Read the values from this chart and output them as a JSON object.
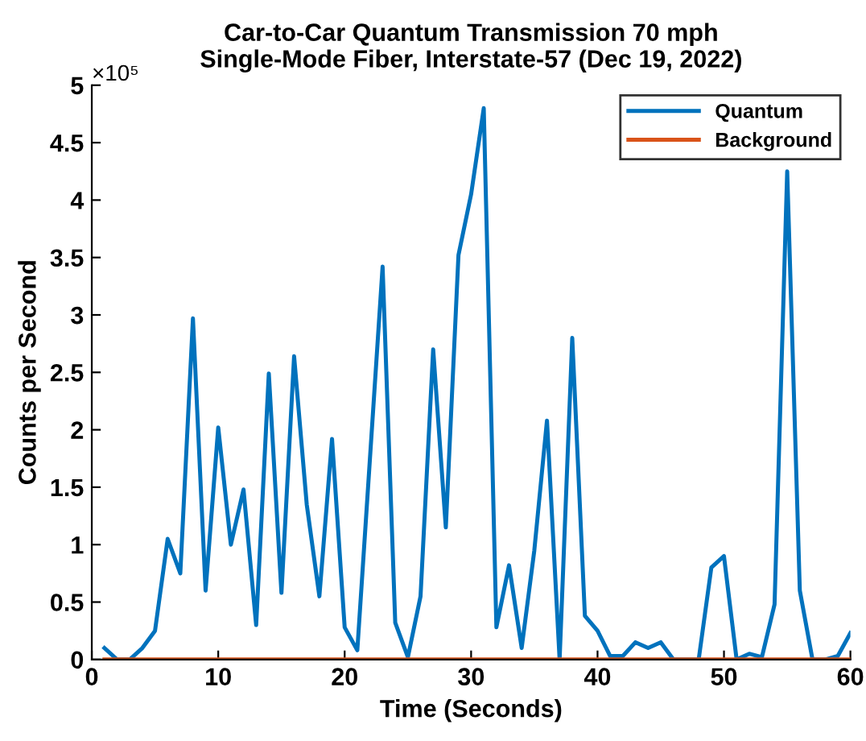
{
  "chart_data": {
    "type": "line",
    "title": "Car-to-Car Quantum Transmission 70 mph\nSingle-Mode Fiber, Interstate-57 (Dec 19, 2022)",
    "xlabel": "Time (Seconds)",
    "ylabel": "Counts per Second",
    "annotations": [
      "×10⁵"
    ],
    "x": [
      1,
      2,
      3,
      4,
      5,
      6,
      7,
      8,
      9,
      10,
      11,
      12,
      13,
      14,
      15,
      16,
      17,
      18,
      19,
      20,
      21,
      22,
      23,
      24,
      25,
      26,
      27,
      28,
      29,
      30,
      31,
      32,
      33,
      34,
      35,
      36,
      37,
      38,
      39,
      40,
      41,
      42,
      43,
      44,
      45,
      46,
      47,
      48,
      49,
      50,
      51,
      52,
      53,
      54,
      55,
      56,
      57,
      58,
      59,
      60
    ],
    "series": [
      {
        "name": "Quantum",
        "color": "#0072bd",
        "values": [
          0.1,
          0,
          0,
          0.1,
          0.25,
          1.05,
          0.75,
          2.97,
          0.6,
          2.02,
          1.0,
          1.48,
          0.3,
          2.49,
          0.58,
          2.64,
          1.35,
          0.55,
          1.92,
          0.28,
          0.08,
          1.75,
          3.42,
          0.32,
          0.02,
          0.55,
          2.7,
          1.15,
          3.52,
          4.05,
          4.8,
          0.28,
          0.82,
          0.1,
          0.95,
          2.08,
          0,
          2.8,
          0.38,
          0.25,
          0.03,
          0.03,
          0.15,
          0.1,
          0.15,
          0,
          0,
          0,
          0.8,
          0.9,
          0,
          0.05,
          0.02,
          0.48,
          4.25,
          0.6,
          0,
          0,
          0.03,
          0.23
        ]
      },
      {
        "name": "Background",
        "color": "#d95319",
        "values": [
          0,
          0,
          0,
          0,
          0,
          0,
          0,
          0,
          0,
          0,
          0,
          0,
          0,
          0,
          0,
          0,
          0,
          0,
          0,
          0,
          0,
          0,
          0,
          0,
          0,
          0,
          0,
          0,
          0,
          0,
          0,
          0,
          0,
          0,
          0,
          0,
          0,
          0,
          0,
          0,
          0,
          0,
          0,
          0,
          0,
          0,
          0,
          0,
          0,
          0,
          0,
          0,
          0,
          0,
          0,
          0,
          0,
          0,
          0,
          0
        ]
      }
    ],
    "xlim": [
      0,
      60
    ],
    "xticks": [
      0,
      10,
      20,
      30,
      40,
      50,
      60
    ],
    "ylim": [
      0,
      5
    ],
    "yticks": [
      0,
      0.5,
      1,
      1.5,
      2,
      2.5,
      3,
      3.5,
      4,
      4.5,
      5
    ],
    "legend": "top right",
    "grid": false
  }
}
